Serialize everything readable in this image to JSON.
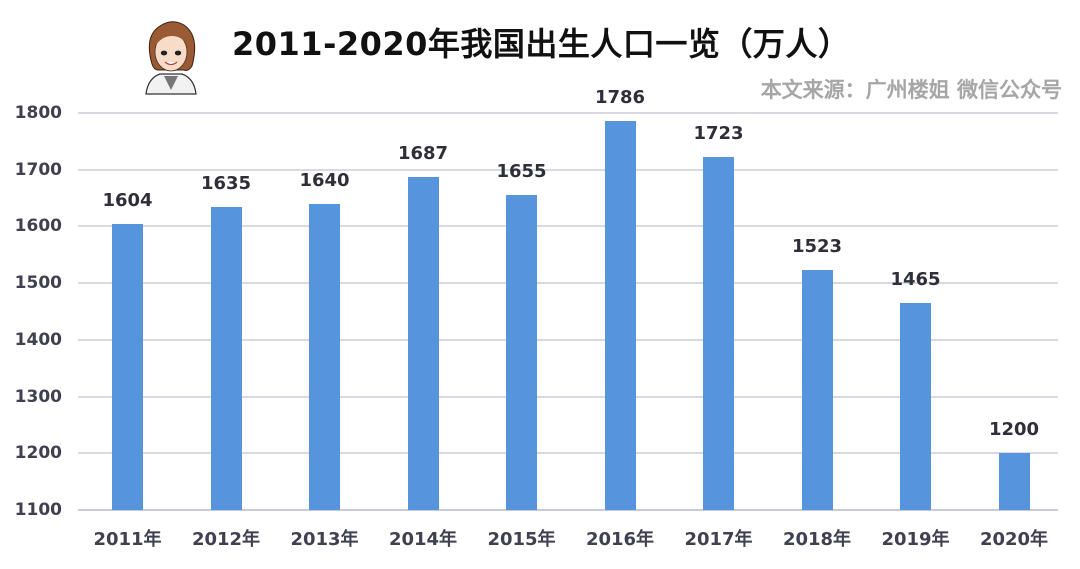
{
  "title": "2011-2020年我国出生人口一览（万人）",
  "source_note": "本文来源：广州楼姐 微信公众号",
  "avatar": {
    "icon": "cartoon-woman-avatar-icon"
  },
  "colors": {
    "bar": "#5794de",
    "title": "#111111",
    "source": "#a6a6a6",
    "grid": "#d9d9e3",
    "tick": "#404050"
  },
  "chart_data": {
    "type": "bar",
    "title": "2011-2020年我国出生人口一览（万人）",
    "xlabel": "",
    "ylabel": "",
    "categories": [
      "2011年",
      "2012年",
      "2013年",
      "2014年",
      "2015年",
      "2016年",
      "2017年",
      "2018年",
      "2019年",
      "2020年"
    ],
    "values": [
      1604,
      1635,
      1640,
      1687,
      1655,
      1786,
      1723,
      1523,
      1465,
      1200
    ],
    "ylim": [
      1100,
      1800
    ],
    "yticks": [
      1800,
      1700,
      1600,
      1500,
      1400,
      1300,
      1200,
      1100
    ],
    "grid": true,
    "legend": "none",
    "data_labels": true
  }
}
